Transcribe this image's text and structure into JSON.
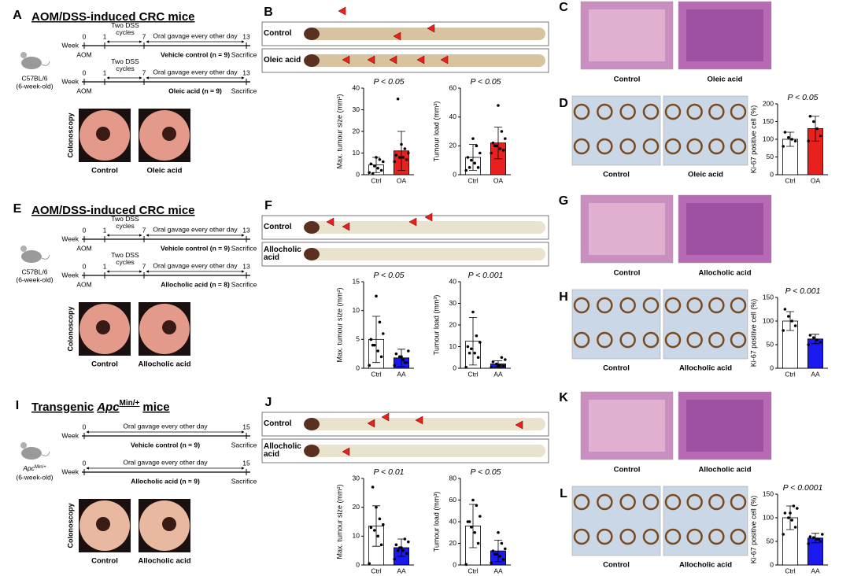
{
  "rows": [
    {
      "schematic": {
        "letter": "A",
        "title": "AOM/DSS-induced CRC mice",
        "mouse": [
          "C57BL/6",
          "(6-week-old)"
        ],
        "timelines": [
          {
            "week": "Week",
            "ticks": [
              0,
              1,
              7,
              13
            ],
            "dss": "Two DSS cycles",
            "gavage": "Oral gavage every other day",
            "start": "AOM",
            "group": "Vehicle control (n = 9)",
            "end": "Sacrifice"
          },
          {
            "week": "Week",
            "ticks": [
              0,
              1,
              7,
              13
            ],
            "dss": "Two DSS cycles",
            "gavage": "Oral gavage every other day",
            "start": "AOM",
            "group": "Oleic acid (n = 9)",
            "end": "Sacrifice"
          }
        ],
        "colonoscopy": "Colonoscopy",
        "captions": [
          "Control",
          "Oleic acid"
        ]
      },
      "colon": {
        "letter": "B",
        "labels": [
          "Control",
          "Oleic acid"
        ]
      },
      "charts": [
        {
          "type": "bar",
          "ylabel": "Max. tumour size (mm²)",
          "annotation": "P < 0.05",
          "categories": [
            "Ctrl",
            "OA"
          ],
          "values": [
            4.5,
            11
          ],
          "errors": [
            3.5,
            9
          ],
          "points": [
            [
              1,
              2,
              3,
              4,
              5,
              6,
              7,
              8,
              0.5
            ],
            [
              6,
              7,
              8,
              8,
              9,
              10,
              12,
              14,
              35
            ]
          ],
          "colors": [
            "#ffffff",
            "#e8201e"
          ],
          "ylim": [
            0,
            40
          ],
          "yticks": [
            0,
            10,
            20,
            30,
            40
          ]
        },
        {
          "type": "bar",
          "ylabel": "Tumour load (mm³)",
          "annotation": "P < 0.05",
          "categories": [
            "Ctrl",
            "OA"
          ],
          "values": [
            12,
            22
          ],
          "errors": [
            9,
            11
          ],
          "points": [
            [
              3,
              5,
              8,
              10,
              12,
              15,
              20,
              25,
              5
            ],
            [
              15,
              17,
              18,
              20,
              22,
              25,
              30,
              48,
              20
            ]
          ],
          "colors": [
            "#ffffff",
            "#e8201e"
          ],
          "ylim": [
            0,
            60
          ],
          "yticks": [
            0,
            20,
            40,
            60
          ]
        }
      ],
      "histology": {
        "letter": "C",
        "captions": [
          "Control",
          "Oleic acid"
        ]
      },
      "ihc": {
        "letter": "D",
        "captions": [
          "Control",
          "Oleic acid"
        ]
      },
      "ki67": {
        "type": "bar",
        "ylabel": "Ki-67 positive cell (%)",
        "annotation": "P < 0.05",
        "categories": [
          "Ctrl",
          "OA"
        ],
        "values": [
          100,
          130
        ],
        "errors": [
          20,
          35
        ],
        "points": [
          [
            80,
            95,
            100,
            105,
            120
          ],
          [
            95,
            110,
            130,
            150,
            165
          ]
        ],
        "colors": [
          "#ffffff",
          "#e8201e"
        ],
        "ylim": [
          0,
          200
        ],
        "yticks": [
          0,
          50,
          100,
          150,
          200
        ]
      }
    },
    {
      "schematic": {
        "letter": "E",
        "title": "AOM/DSS-induced CRC mice",
        "mouse": [
          "C57BL/6",
          "(6-week-old)"
        ],
        "timelines": [
          {
            "week": "Week",
            "ticks": [
              0,
              1,
              7,
              13
            ],
            "dss": "Two DSS cycles",
            "gavage": "Oral gavage every other day",
            "start": "AOM",
            "group": "Vehicle control (n = 9)",
            "end": "Sacrifice"
          },
          {
            "week": "Week",
            "ticks": [
              0,
              1,
              7,
              13
            ],
            "dss": "Two DSS cycles",
            "gavage": "Oral gavage every other day",
            "start": "AOM",
            "group": "Allocholic acid (n = 8)",
            "end": "Sacrifice"
          }
        ],
        "colonoscopy": "Colonoscopy",
        "captions": [
          "Control",
          "Allocholic acid"
        ]
      },
      "colon": {
        "letter": "F",
        "labels": [
          "Control",
          "Allocholic acid"
        ]
      },
      "charts": [
        {
          "type": "bar",
          "ylabel": "Max. tumour size (mm²)",
          "annotation": "P < 0.05",
          "categories": [
            "Ctrl",
            "AA"
          ],
          "values": [
            5,
            1.8
          ],
          "errors": [
            4,
            1.5
          ],
          "points": [
            [
              0.5,
              2,
              3,
              4,
              5,
              6,
              8,
              12.5,
              4
            ],
            [
              0.5,
              1,
              1.5,
              2,
              2.5,
              3,
              1,
              2
            ]
          ],
          "colors": [
            "#ffffff",
            "#1a1aee"
          ],
          "ylim": [
            0,
            15
          ],
          "yticks": [
            0,
            5,
            10,
            15
          ]
        },
        {
          "type": "bar",
          "ylabel": "Tumour load (mm³)",
          "annotation": "P < 0.001",
          "categories": [
            "Ctrl",
            "AA"
          ],
          "values": [
            12.5,
            2
          ],
          "errors": [
            11,
            1.5
          ],
          "points": [
            [
              0.5,
              5,
              7,
              9,
              10,
              12,
              15,
              26,
              7
            ],
            [
              0.5,
              1,
              1.5,
              2,
              3,
              4,
              5,
              1
            ]
          ],
          "colors": [
            "#ffffff",
            "#1a1aee"
          ],
          "ylim": [
            0,
            40
          ],
          "yticks": [
            0,
            10,
            20,
            30,
            40
          ]
        }
      ],
      "histology": {
        "letter": "G",
        "captions": [
          "Control",
          "Allocholic acid"
        ]
      },
      "ihc": {
        "letter": "H",
        "captions": [
          "Control",
          "Allocholic acid"
        ]
      },
      "ki67": {
        "type": "bar",
        "ylabel": "Ki-67 positive cell (%)",
        "annotation": "P < 0.001",
        "categories": [
          "Ctrl",
          "AA"
        ],
        "values": [
          100,
          62
        ],
        "errors": [
          20,
          10
        ],
        "points": [
          [
            80,
            90,
            100,
            110,
            125
          ],
          [
            50,
            55,
            60,
            65,
            70
          ]
        ],
        "colors": [
          "#ffffff",
          "#1a1aee"
        ],
        "ylim": [
          0,
          150
        ],
        "yticks": [
          0,
          50,
          100,
          150
        ]
      }
    },
    {
      "schematic": {
        "letter": "I",
        "title": [
          "Transgenic",
          "Apc",
          "Min/+",
          "mice"
        ],
        "mouse": [
          "Apc",
          "Min/+",
          "(6-week-old)"
        ],
        "timelines": [
          {
            "week": "Week",
            "ticks": [
              0,
              15
            ],
            "gavage": "Oral gavage every other day",
            "group": "Vehicle control (n = 9)",
            "end": "Sacrifice"
          },
          {
            "week": "Week",
            "ticks": [
              0,
              15
            ],
            "gavage": "Oral gavage every other day",
            "group": "Allocholic acid (n = 9)",
            "end": "Sacrifice"
          }
        ],
        "colonoscopy": "Colonoscopy",
        "captions": [
          "Control",
          "Allocholic acid"
        ]
      },
      "colon": {
        "letter": "J",
        "labels": [
          "Control",
          "Allocholic acid"
        ]
      },
      "charts": [
        {
          "type": "bar",
          "ylabel": "Max. tumour size (mm²)",
          "annotation": "P < 0.01",
          "categories": [
            "Ctrl",
            "AA"
          ],
          "values": [
            13.5,
            6
          ],
          "errors": [
            7,
            3
          ],
          "points": [
            [
              0.5,
              7,
              10,
              12,
              13,
              14,
              16,
              20,
              27
            ],
            [
              2,
              4,
              5,
              6,
              7,
              8,
              9,
              6,
              5
            ]
          ],
          "colors": [
            "#ffffff",
            "#1a1aee"
          ],
          "ylim": [
            0,
            30
          ],
          "yticks": [
            0,
            10,
            20,
            30
          ]
        },
        {
          "type": "bar",
          "ylabel": "Tumour load (mm³)",
          "annotation": "P < 0.05",
          "categories": [
            "Ctrl",
            "AA"
          ],
          "values": [
            36,
            13
          ],
          "errors": [
            20,
            10
          ],
          "points": [
            [
              0.5,
              20,
              30,
              35,
              40,
              45,
              55,
              60,
              40
            ],
            [
              2,
              5,
              8,
              10,
              13,
              15,
              20,
              30,
              10
            ]
          ],
          "colors": [
            "#ffffff",
            "#1a1aee"
          ],
          "ylim": [
            0,
            80
          ],
          "yticks": [
            0,
            20,
            40,
            60,
            80
          ]
        }
      ],
      "histology": {
        "letter": "K",
        "captions": [
          "Control",
          "Allocholic acid"
        ]
      },
      "ihc": {
        "letter": "L",
        "captions": [
          "Control",
          "Allocholic acid"
        ]
      },
      "ki67": {
        "type": "bar",
        "ylabel": "Ki-67 positive cell (%)",
        "annotation": "P < 0.0001",
        "categories": [
          "Ctrl",
          "AA"
        ],
        "values": [
          100,
          57
        ],
        "errors": [
          25,
          10
        ],
        "points": [
          [
            65,
            80,
            95,
            100,
            110,
            120,
            125,
            110
          ],
          [
            45,
            50,
            55,
            58,
            60,
            65,
            55
          ]
        ],
        "colors": [
          "#ffffff",
          "#1a1aee"
        ],
        "ylim": [
          0,
          150
        ],
        "yticks": [
          0,
          50,
          100,
          150
        ]
      }
    }
  ]
}
